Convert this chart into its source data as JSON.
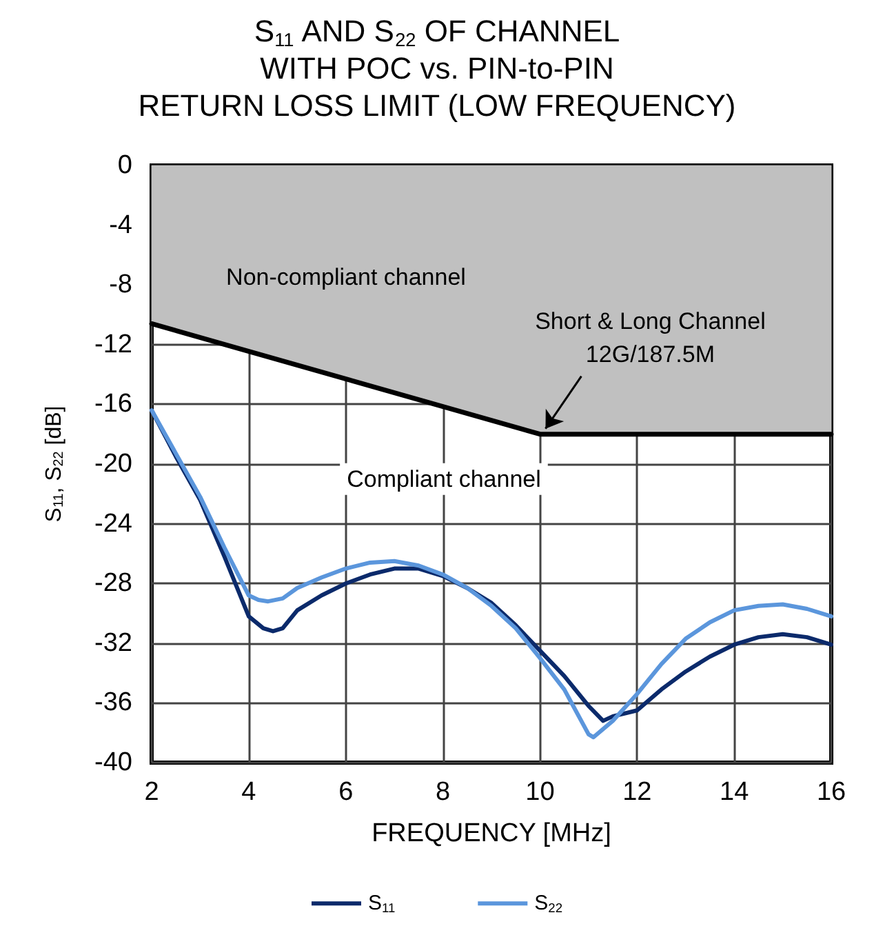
{
  "chart_data": {
    "type": "line",
    "title": "S$_{11}$ AND S$_{22}$ OF CHANNEL\nWITH POC vs. PIN-to-PIN\nRETURN LOSS LIMIT (LOW FREQUENCY)",
    "xlabel": "FREQUENCY [MHz]",
    "ylabel": "S$_{11}$, S$_{22}$ [dB]",
    "xlim": [
      2,
      16
    ],
    "xticks": [
      2,
      4,
      6,
      8,
      10,
      12,
      14,
      16
    ],
    "ylim": [
      -40,
      0
    ],
    "yticks": [
      -40,
      -36,
      -32,
      -28,
      -24,
      -20,
      -16,
      -12,
      -8,
      -4,
      0
    ],
    "grid": true,
    "legend": "bottom",
    "marker": "none",
    "line_style": "solid",
    "series": [
      {
        "type": "area",
        "color": "#000000",
        "x": [
          2,
          10,
          16
        ],
        "values": [
          -10.6,
          -18,
          -18
        ]
      },
      {
        "name": "S$_{11}$",
        "color": "#0b2a6b",
        "x": [
          2,
          2.5,
          3,
          3.5,
          4,
          4.3,
          4.5,
          4.7,
          5,
          5.5,
          6,
          6.5,
          7,
          7.5,
          8,
          8.5,
          9,
          9.5,
          10,
          10.5,
          11,
          11.3,
          11.5,
          12,
          12.5,
          13,
          13.5,
          14,
          14.5,
          15,
          15.5,
          16
        ],
        "values": [
          -16.4,
          -19.5,
          -22.4,
          -26.2,
          -30.2,
          -31,
          -31.2,
          -31,
          -29.8,
          -28.8,
          -28,
          -27.4,
          -27,
          -27,
          -27.5,
          -28.3,
          -29.3,
          -30.8,
          -32.5,
          -34.2,
          -36.2,
          -37.2,
          -36.9,
          -36.5,
          -35.1,
          -33.9,
          -32.9,
          -32.1,
          -31.6,
          -31.4,
          -31.6,
          -32.1
        ]
      },
      {
        "name": "S$_{22}$",
        "color": "#5b96dc",
        "x": [
          2,
          2.5,
          3,
          3.5,
          4,
          4.2,
          4.4,
          4.7,
          5,
          5.5,
          6,
          6.5,
          7,
          7.5,
          8,
          8.5,
          9,
          9.5,
          10,
          10.5,
          11,
          11.1,
          11.5,
          12,
          12.5,
          13,
          13.5,
          14,
          14.5,
          15,
          15.5,
          16
        ],
        "values": [
          -16.4,
          -19.3,
          -22.2,
          -25.6,
          -28.8,
          -29.1,
          -29.2,
          -29,
          -28.3,
          -27.6,
          -27,
          -26.6,
          -26.5,
          -26.8,
          -27.4,
          -28.3,
          -29.5,
          -31,
          -33,
          -35.1,
          -38.1,
          -38.3,
          -37.2,
          -35.4,
          -33.4,
          -31.7,
          -30.6,
          -29.8,
          -29.5,
          -29.4,
          -29.7,
          -30.2
        ]
      }
    ],
    "annotations": [
      "Non-compliant channel",
      "Compliant channel",
      {
        "text": "Short & Long Channel\n12G/187.5M",
        "x": 10,
        "y": -18
      }
    ]
  }
}
